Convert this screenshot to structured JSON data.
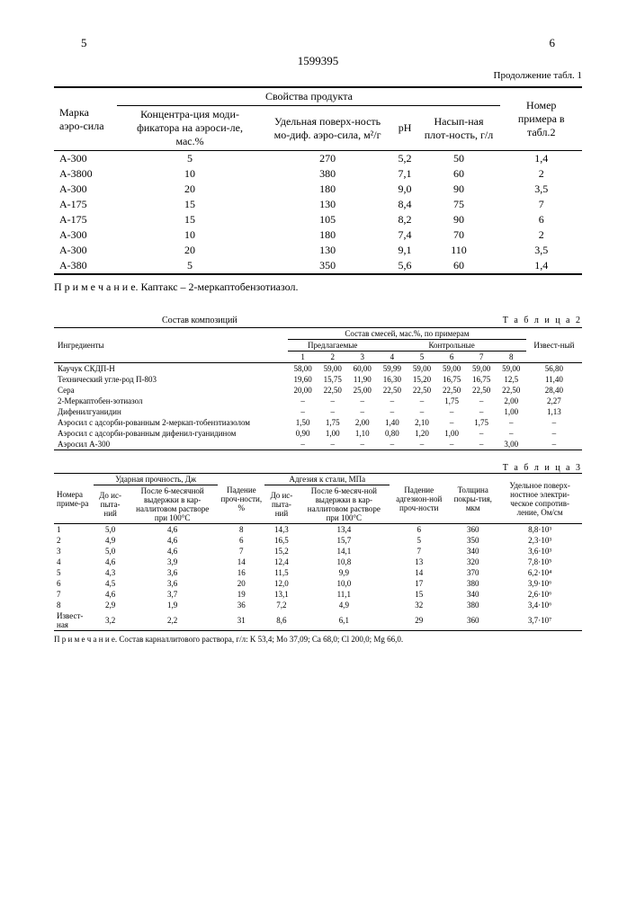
{
  "header": {
    "page_left": "5",
    "page_right": "6",
    "doc_number": "1599395",
    "continuation": "Продолжение табл. 1"
  },
  "table1": {
    "col_brand": "Марка аэро-силa",
    "group_props": "Свойства продукта",
    "col_conc": "Концентра-ция моди-фикатора на аэроси-ле, мас.%",
    "col_surface": "Удельная поверх-ность мо-диф. аэро-силa, м²/г",
    "col_ph": "pH",
    "col_density": "Насып-ная плот-ность, г/л",
    "col_ref": "Номер примера в табл.2",
    "rows": [
      {
        "brand": "А-300",
        "conc": "5",
        "surf": "270",
        "ph": "5,2",
        "dens": "50",
        "ref": "1,4"
      },
      {
        "brand": "А-3800",
        "conc": "10",
        "surf": "380",
        "ph": "7,1",
        "dens": "60",
        "ref": "2"
      },
      {
        "brand": "А-300",
        "conc": "20",
        "surf": "180",
        "ph": "9,0",
        "dens": "90",
        "ref": "3,5"
      },
      {
        "brand": "А-175",
        "conc": "15",
        "surf": "130",
        "ph": "8,4",
        "dens": "75",
        "ref": "7"
      },
      {
        "brand": "А-175",
        "conc": "15",
        "surf": "105",
        "ph": "8,2",
        "dens": "90",
        "ref": "6"
      },
      {
        "brand": "А-300",
        "conc": "10",
        "surf": "180",
        "ph": "7,4",
        "dens": "70",
        "ref": "2"
      },
      {
        "brand": "А-300",
        "conc": "20",
        "surf": "130",
        "ph": "9,1",
        "dens": "110",
        "ref": "3,5"
      },
      {
        "brand": "А-380",
        "conc": "5",
        "surf": "350",
        "ph": "5,6",
        "dens": "60",
        "ref": "1,4"
      }
    ],
    "note": "П р и м е ч а н и е. Каптакс – 2-меркаптобензотиазол."
  },
  "table2": {
    "caption_left": "Состав композиций",
    "caption_right": "Т а б л и ц а 2",
    "col_ingredient": "Ингредиенты",
    "group_mix": "Состав смесей, мас.%, по примерам",
    "sub_proposed": "Предлагаемые",
    "sub_control": "Контрольные",
    "col_known": "Извест-ный",
    "cols": [
      "1",
      "2",
      "3",
      "4",
      "5",
      "6",
      "7",
      "8"
    ],
    "rows": [
      {
        "name": "Каучук СКДП-Н",
        "v": [
          "58,00",
          "59,00",
          "60,00",
          "59,99",
          "59,00",
          "59,00",
          "59,00",
          "59,00",
          "56,80"
        ]
      },
      {
        "name": "Технический угле-род П-803",
        "v": [
          "19,60",
          "15,75",
          "11,90",
          "16,30",
          "15,20",
          "16,75",
          "16,75",
          "12,5",
          "11,40"
        ]
      },
      {
        "name": "Сера",
        "v": [
          "20,00",
          "22,50",
          "25,00",
          "22,50",
          "22,50",
          "22,50",
          "22,50",
          "22,50",
          "28,40"
        ]
      },
      {
        "name": "2-Мeркаптобен-зотиазол",
        "v": [
          "–",
          "–",
          "–",
          "–",
          "–",
          "1,75",
          "–",
          "2,00",
          "2,27"
        ]
      },
      {
        "name": "Дифенилгуанидин",
        "v": [
          "–",
          "–",
          "–",
          "–",
          "–",
          "–",
          "–",
          "1,00",
          "1,13"
        ]
      },
      {
        "name": "Аэросил с адсорби-рованным 2-меркап-тобензтиазолом",
        "v": [
          "1,50",
          "1,75",
          "2,00",
          "1,40",
          "2,10",
          "–",
          "1,75",
          "–",
          "–"
        ]
      },
      {
        "name": "Аэросил с адсорби-рованным дифенил-гуанидином",
        "v": [
          "0,90",
          "1,00",
          "1,10",
          "0,80",
          "1,20",
          "1,00",
          "–",
          "–",
          "–"
        ]
      },
      {
        "name": "Аэросил А-300",
        "v": [
          "–",
          "–",
          "–",
          "–",
          "–",
          "–",
          "–",
          "3,00",
          "–"
        ]
      }
    ]
  },
  "table3": {
    "caption": "Т а б л и ц а  3",
    "col_num": "Номера приме-ра",
    "group_impact": "Ударная прочность, Дж",
    "col_impact_before": "До ис-пыта-ний",
    "col_impact_after": "После 6-месячной выдержки в кар-наллитовом растворе при 100°С",
    "col_drop_strength": "Падение проч-ности, %",
    "group_adhesion": "Адгезия к стали, МПа",
    "col_adh_before": "До ис-пыта-ний",
    "col_adh_after": "После 6-месяч-ной выдержки в кар-наллитовом растворе при 100°С",
    "col_drop_adh": "Падение адгезион-ной проч-ности",
    "col_thickness": "Толщина покры-тия, мкм",
    "col_resist": "Удельное поверх-ностное электри-ческое сопротив-ление, Ом/см",
    "rows": [
      {
        "n": "1",
        "ib": "5,0",
        "ia": "4,6",
        "dp": "8",
        "ab": "14,3",
        "aa": "13,4",
        "da": "6",
        "th": "360",
        "r": "8,8·10³"
      },
      {
        "n": "2",
        "ib": "4,9",
        "ia": "4,6",
        "dp": "6",
        "ab": "16,5",
        "aa": "15,7",
        "da": "5",
        "th": "350",
        "r": "2,3·10³"
      },
      {
        "n": "3",
        "ib": "5,0",
        "ia": "4,6",
        "dp": "7",
        "ab": "15,2",
        "aa": "14,1",
        "da": "7",
        "th": "340",
        "r": "3,6·10³"
      },
      {
        "n": "4",
        "ib": "4,6",
        "ia": "3,9",
        "dp": "14",
        "ab": "12,4",
        "aa": "10,8",
        "da": "13",
        "th": "320",
        "r": "7,8·10⁵"
      },
      {
        "n": "5",
        "ib": "4,3",
        "ia": "3,6",
        "dp": "16",
        "ab": "11,5",
        "aa": "9,9",
        "da": "14",
        "th": "370",
        "r": "6,2·10⁴"
      },
      {
        "n": "6",
        "ib": "4,5",
        "ia": "3,6",
        "dp": "20",
        "ab": "12,0",
        "aa": "10,0",
        "da": "17",
        "th": "380",
        "r": "3,9·10⁶"
      },
      {
        "n": "7",
        "ib": "4,6",
        "ia": "3,7",
        "dp": "19",
        "ab": "13,1",
        "aa": "11,1",
        "da": "15",
        "th": "340",
        "r": "2,6·10⁶"
      },
      {
        "n": "8",
        "ib": "2,9",
        "ia": "1,9",
        "dp": "36",
        "ab": "7,2",
        "aa": "4,9",
        "da": "32",
        "th": "380",
        "r": "3,4·10⁶"
      },
      {
        "n": "Извест-ная",
        "ib": "3,2",
        "ia": "2,2",
        "dp": "31",
        "ab": "8,6",
        "aa": "6,1",
        "da": "29",
        "th": "360",
        "r": "3,7·10⁷"
      }
    ],
    "note": "П р и м е ч а н и е. Состав карналлитового раствора, г/л: K 53,4; Mо 37,09; Ca 68,0; Cl 200,0; Mg 66,0."
  }
}
